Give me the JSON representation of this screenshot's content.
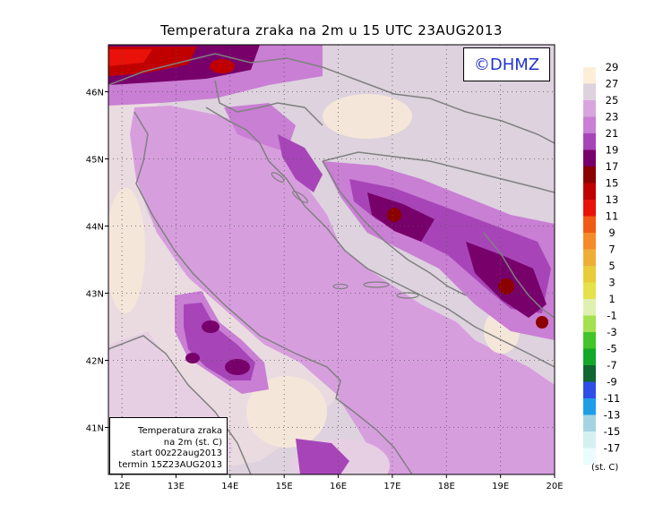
{
  "title": "Temperatura zraka na 2m u 15 UTC 23AUG2013",
  "copyright": "©DHMZ",
  "info_box": {
    "line1": "Temperatura zraka",
    "line2": "na 2m (st. C)",
    "line3": "start 00z22aug2013",
    "line4": "termin 15Z23AUG2013"
  },
  "axes": {
    "lon_labels": [
      "12E",
      "13E",
      "14E",
      "15E",
      "16E",
      "17E",
      "18E",
      "19E",
      "20E"
    ],
    "lat_labels": [
      "46N",
      "45N",
      "44N",
      "43N",
      "42N",
      "41N"
    ],
    "lon_range": [
      11.75,
      20.0
    ],
    "lat_range": [
      40.3,
      46.7
    ]
  },
  "legend": {
    "units": "(st. C)",
    "labels": [
      "29",
      "27",
      "25",
      "23",
      "21",
      "19",
      "17",
      "15",
      "13",
      "11",
      "9",
      "7",
      "5",
      "3",
      "1",
      "-1",
      "-3",
      "-5",
      "-7",
      "-9",
      "-11",
      "-13",
      "-15",
      "-17"
    ],
    "colors": [
      "#fdeeda",
      "#ddd2de",
      "#d8a6dc",
      "#c97fd4",
      "#a745b8",
      "#78006b",
      "#8b0000",
      "#c00000",
      "#e8120a",
      "#f05a14",
      "#f58a2a",
      "#eeae36",
      "#e8cc3a",
      "#e5e24c",
      "#e0f0b0",
      "#a4e050",
      "#42c42a",
      "#12a82a",
      "#106630",
      "#2e4ee8",
      "#1e9ee6",
      "#a4d4e2",
      "#d6f0f2",
      "#eafcfc"
    ]
  },
  "colors": {
    "sea": "#d79ede",
    "land_base": "#ddd2de",
    "coast": "#808080"
  }
}
